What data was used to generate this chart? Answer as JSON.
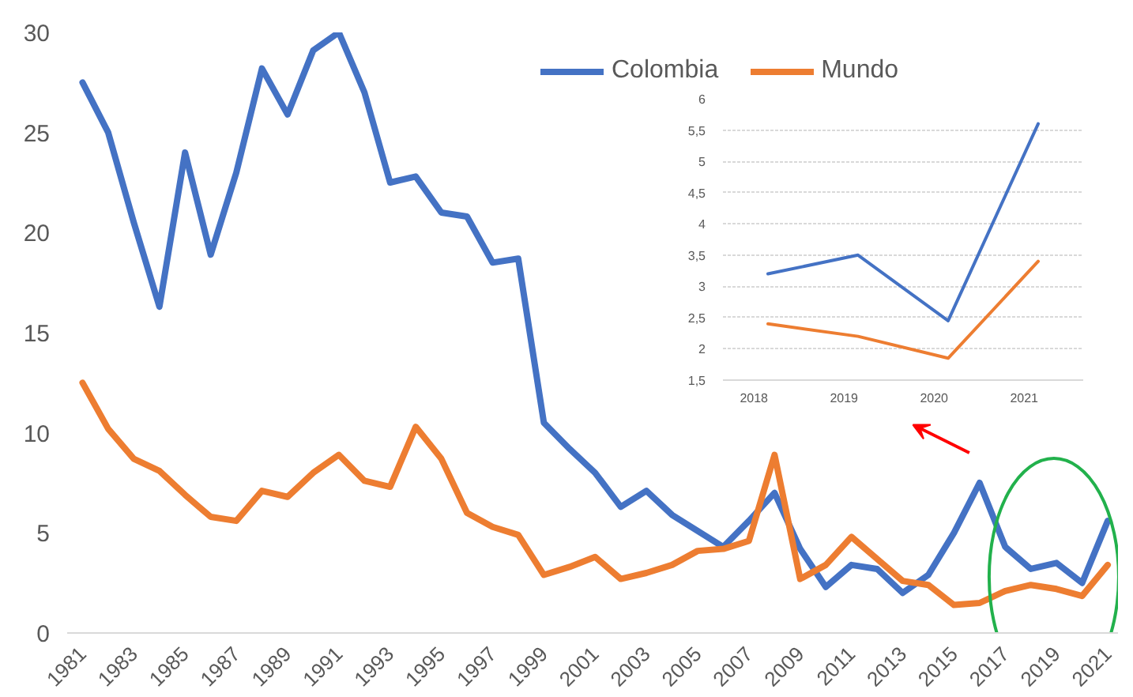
{
  "chart_data": [
    {
      "type": "line",
      "categories": [
        "1981",
        null,
        "1983",
        null,
        "1985",
        null,
        "1987",
        null,
        "1989",
        null,
        "1991",
        null,
        "1993",
        null,
        "1995",
        null,
        "1997",
        null,
        "1999",
        null,
        "2001",
        null,
        "2003",
        null,
        "2005",
        null,
        "2007",
        null,
        "2009",
        null,
        "2011",
        null,
        "2013",
        null,
        "2015",
        null,
        "2017",
        null,
        "2019",
        null,
        "2021"
      ],
      "series": [
        {
          "name": "Colombia",
          "color": "#4472c4",
          "values": [
            27.5,
            25,
            20.5,
            16.3,
            24,
            18.9,
            23,
            28.2,
            25.9,
            29.1,
            30,
            27,
            22.5,
            22.8,
            21,
            20.8,
            18.5,
            18.7,
            10.5,
            9.2,
            8,
            6.3,
            7.1,
            5.9,
            5.1,
            4.3,
            5.6,
            7,
            4.2,
            2.3,
            3.4,
            3.2,
            2,
            2.9,
            5,
            7.5,
            4.3,
            3.2,
            3.5,
            2.5,
            5.6
          ]
        },
        {
          "name": "Mundo",
          "color": "#ed7d31",
          "values": [
            12.5,
            10.2,
            8.7,
            8.1,
            6.9,
            5.8,
            5.6,
            7.1,
            6.8,
            8,
            8.9,
            7.6,
            7.3,
            10.3,
            8.7,
            6,
            5.3,
            4.9,
            2.9,
            3.3,
            3.8,
            2.7,
            3,
            3.4,
            4.1,
            4.2,
            4.6,
            8.9,
            2.7,
            3.4,
            4.8,
            3.7,
            2.6,
            2.4,
            1.4,
            1.5,
            2.1,
            2.4,
            2.2,
            1.85,
            3.4
          ]
        }
      ],
      "ylim": [
        0,
        30
      ],
      "yticks": [
        0,
        5,
        10,
        15,
        20,
        25,
        30
      ],
      "grid": false,
      "legend": "top",
      "line_style": "solid"
    },
    {
      "type": "line",
      "categories": [
        "2018",
        "2019",
        "2020",
        "2021"
      ],
      "series": [
        {
          "color": "#4472c4",
          "values": [
            3.2,
            3.5,
            2.45,
            5.6
          ]
        },
        {
          "color": "#ed7d31",
          "values": [
            2.4,
            2.2,
            1.85,
            3.4
          ]
        }
      ],
      "ylim": [
        1.5,
        6
      ],
      "yticks": [
        {
          "value": 1.5,
          "label": "1,5"
        },
        2,
        {
          "value": 2.5,
          "label": "2,5"
        },
        3,
        {
          "value": 3.5,
          "label": "3,5"
        },
        4,
        {
          "value": 4.5,
          "label": "4,5"
        },
        5,
        {
          "value": 5.5,
          "label": "5,5"
        },
        6
      ],
      "grid": "y",
      "legend": false,
      "line_style": "solid"
    }
  ]
}
